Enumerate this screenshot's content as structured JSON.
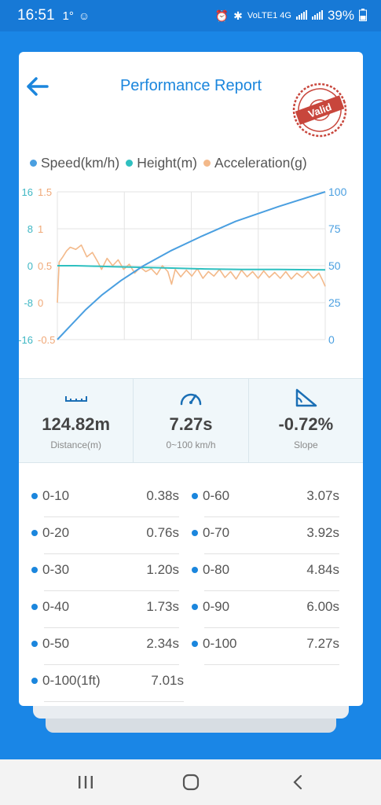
{
  "status": {
    "time": "16:51",
    "temp": "1°",
    "net": "VoLTE1 4G",
    "battery": "39%"
  },
  "header": {
    "title": "Performance Report",
    "stamp_text": "Valid"
  },
  "legend": [
    {
      "label": "Speed(km/h)",
      "color": "#4a9fe0"
    },
    {
      "label": "Height(m)",
      "color": "#2fc0c0"
    },
    {
      "label": "Acceleration(g)",
      "color": "#f3b98a"
    }
  ],
  "chart_data": {
    "type": "line",
    "x_range": [
      0,
      7.27
    ],
    "grid": true,
    "axes": {
      "height_ticks": [
        "16",
        "8",
        "0",
        "-8",
        "-16"
      ],
      "accel_ticks": [
        "1.5",
        "1",
        "0.5",
        "0",
        "-0.5"
      ],
      "speed_ticks": [
        "100",
        "75",
        "50",
        "25",
        "0"
      ]
    },
    "series": [
      {
        "name": "Speed(km/h)",
        "axis": "right",
        "ylim": [
          0,
          100
        ],
        "points": [
          [
            0,
            0
          ],
          [
            0.38,
            10
          ],
          [
            0.76,
            20
          ],
          [
            1.2,
            30
          ],
          [
            1.73,
            40
          ],
          [
            2.34,
            50
          ],
          [
            3.07,
            60
          ],
          [
            3.92,
            70
          ],
          [
            4.84,
            80
          ],
          [
            6.0,
            90
          ],
          [
            7.27,
            100
          ]
        ]
      },
      {
        "name": "Height(m)",
        "axis": "left",
        "ylim": [
          -16,
          16
        ],
        "points": [
          [
            0,
            0
          ],
          [
            0.5,
            0
          ],
          [
            1.0,
            -0.1
          ],
          [
            1.5,
            -0.2
          ],
          [
            2.0,
            -0.3
          ],
          [
            3.0,
            -0.5
          ],
          [
            4.0,
            -0.7
          ],
          [
            5.0,
            -0.8
          ],
          [
            6.0,
            -0.8
          ],
          [
            7.27,
            -0.9
          ]
        ]
      },
      {
        "name": "Acceleration(g)",
        "axis": "left2",
        "ylim": [
          -0.5,
          1.5
        ],
        "points": [
          [
            0,
            0
          ],
          [
            0.05,
            0.55
          ],
          [
            0.15,
            0.62
          ],
          [
            0.25,
            0.7
          ],
          [
            0.35,
            0.75
          ],
          [
            0.5,
            0.72
          ],
          [
            0.65,
            0.78
          ],
          [
            0.8,
            0.62
          ],
          [
            0.95,
            0.68
          ],
          [
            1.1,
            0.55
          ],
          [
            1.2,
            0.45
          ],
          [
            1.35,
            0.6
          ],
          [
            1.5,
            0.5
          ],
          [
            1.65,
            0.58
          ],
          [
            1.8,
            0.45
          ],
          [
            1.95,
            0.52
          ],
          [
            2.1,
            0.4
          ],
          [
            2.25,
            0.48
          ],
          [
            2.4,
            0.42
          ],
          [
            2.55,
            0.46
          ],
          [
            2.7,
            0.38
          ],
          [
            2.85,
            0.5
          ],
          [
            3.0,
            0.42
          ],
          [
            3.1,
            0.25
          ],
          [
            3.2,
            0.45
          ],
          [
            3.35,
            0.35
          ],
          [
            3.5,
            0.44
          ],
          [
            3.65,
            0.36
          ],
          [
            3.8,
            0.46
          ],
          [
            3.95,
            0.33
          ],
          [
            4.1,
            0.42
          ],
          [
            4.25,
            0.36
          ],
          [
            4.4,
            0.45
          ],
          [
            4.55,
            0.34
          ],
          [
            4.7,
            0.42
          ],
          [
            4.85,
            0.32
          ],
          [
            5.0,
            0.44
          ],
          [
            5.15,
            0.35
          ],
          [
            5.3,
            0.42
          ],
          [
            5.45,
            0.33
          ],
          [
            5.6,
            0.43
          ],
          [
            5.75,
            0.34
          ],
          [
            5.9,
            0.41
          ],
          [
            6.05,
            0.33
          ],
          [
            6.2,
            0.42
          ],
          [
            6.35,
            0.32
          ],
          [
            6.5,
            0.4
          ],
          [
            6.65,
            0.34
          ],
          [
            6.8,
            0.42
          ],
          [
            6.95,
            0.33
          ],
          [
            7.1,
            0.4
          ],
          [
            7.2,
            0.3
          ],
          [
            7.27,
            0.22
          ]
        ]
      }
    ]
  },
  "stats": [
    {
      "value": "124.82m",
      "label": "Distance(m)",
      "icon": "ruler-icon"
    },
    {
      "value": "7.27s",
      "label": "0~100 km/h",
      "icon": "speedometer-icon"
    },
    {
      "value": "-0.72%",
      "label": "Slope",
      "icon": "slope-icon"
    }
  ],
  "splits": [
    {
      "label": "0-10",
      "value": "0.38s"
    },
    {
      "label": "0-60",
      "value": "3.07s"
    },
    {
      "label": "0-20",
      "value": "0.76s"
    },
    {
      "label": "0-70",
      "value": "3.92s"
    },
    {
      "label": "0-30",
      "value": "1.20s"
    },
    {
      "label": "0-80",
      "value": "4.84s"
    },
    {
      "label": "0-40",
      "value": "1.73s"
    },
    {
      "label": "0-90",
      "value": "6.00s"
    },
    {
      "label": "0-50",
      "value": "2.34s"
    },
    {
      "label": "0-100",
      "value": "7.27s"
    },
    {
      "label": "0-100(1ft)",
      "value": "7.01s"
    }
  ]
}
